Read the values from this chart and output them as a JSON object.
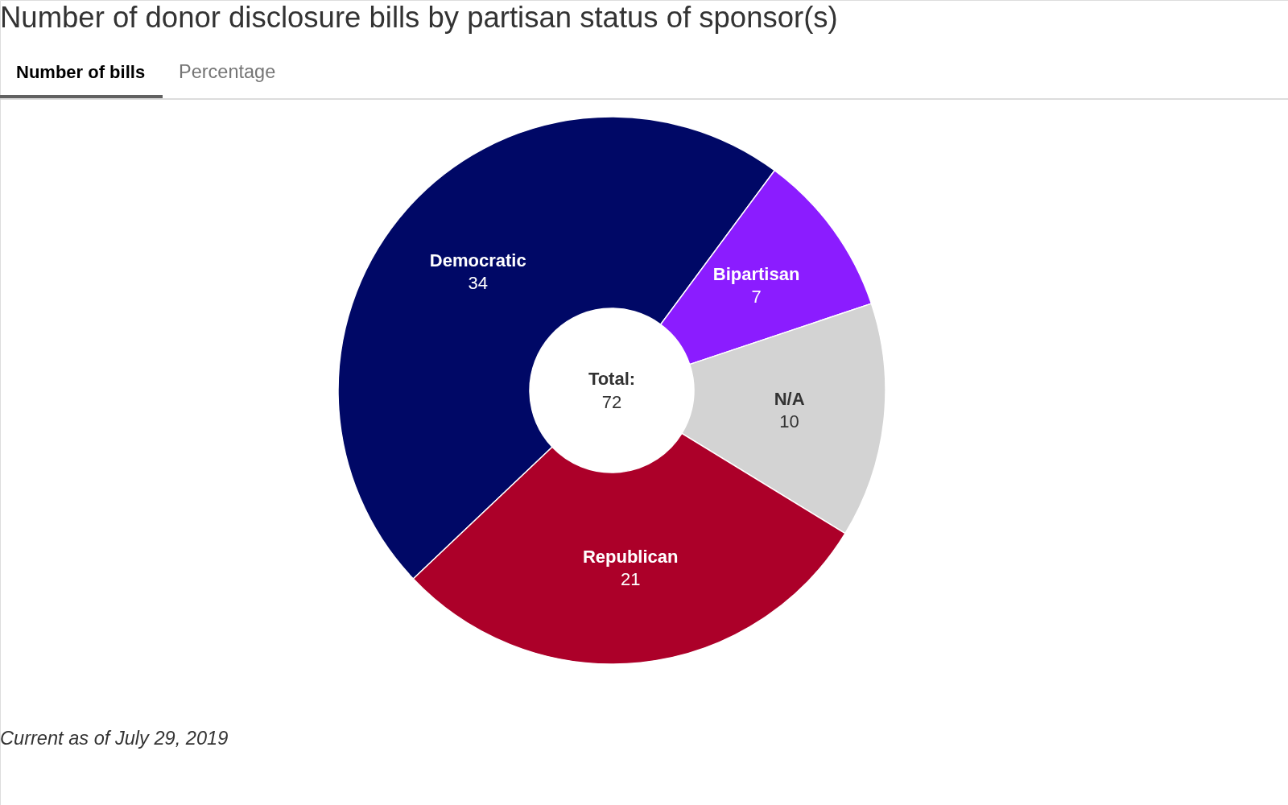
{
  "chart_data": {
    "type": "donut",
    "title": "Number of donor disclosure bills by partisan status of sponsor(s)",
    "categories": [
      "Democratic",
      "Bipartisan",
      "N/A",
      "Republican"
    ],
    "values": [
      34,
      7,
      10,
      21
    ],
    "colors": [
      "#000866",
      "#8b1cff",
      "#d3d3d3",
      "#ac0029"
    ],
    "data_labels": true,
    "annotations": [
      "Number of bills",
      "Percentage",
      "Total:",
      "72",
      "Current as of July 29, 2019"
    ]
  }
}
